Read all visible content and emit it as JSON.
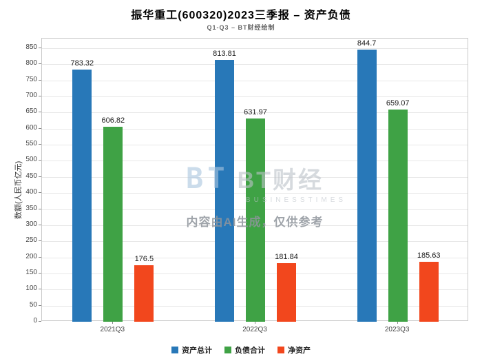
{
  "watermark": {
    "logo_main": "BT",
    "logo_cn": "BT财经",
    "logo_sub": "BUSINESSTIMES",
    "disclaimer": "内容由AI生成，仅供参考"
  },
  "chart_data": {
    "type": "bar",
    "title": "振华重工(600320)2023三季报 – 资产负债",
    "subtitle": "Q1-Q3 – BT财经绘制",
    "categories": [
      "2021Q3",
      "2022Q3",
      "2023Q3"
    ],
    "series": [
      {
        "name": "资产总计",
        "color": "#2878B8",
        "values": [
          783.32,
          813.81,
          844.7
        ]
      },
      {
        "name": "负债合计",
        "color": "#3FA245",
        "values": [
          606.82,
          631.97,
          659.07
        ]
      },
      {
        "name": "净资产",
        "color": "#F2471D",
        "values": [
          176.5,
          181.84,
          185.63
        ]
      }
    ],
    "xlabel": "",
    "ylabel": "数额(人民币亿元)",
    "ylim": [
      0,
      880
    ],
    "yticks": [
      0,
      50,
      100,
      150,
      200,
      250,
      300,
      350,
      400,
      450,
      500,
      550,
      600,
      650,
      700,
      750,
      800,
      850
    ],
    "grid": true,
    "legend_position": "bottom"
  }
}
